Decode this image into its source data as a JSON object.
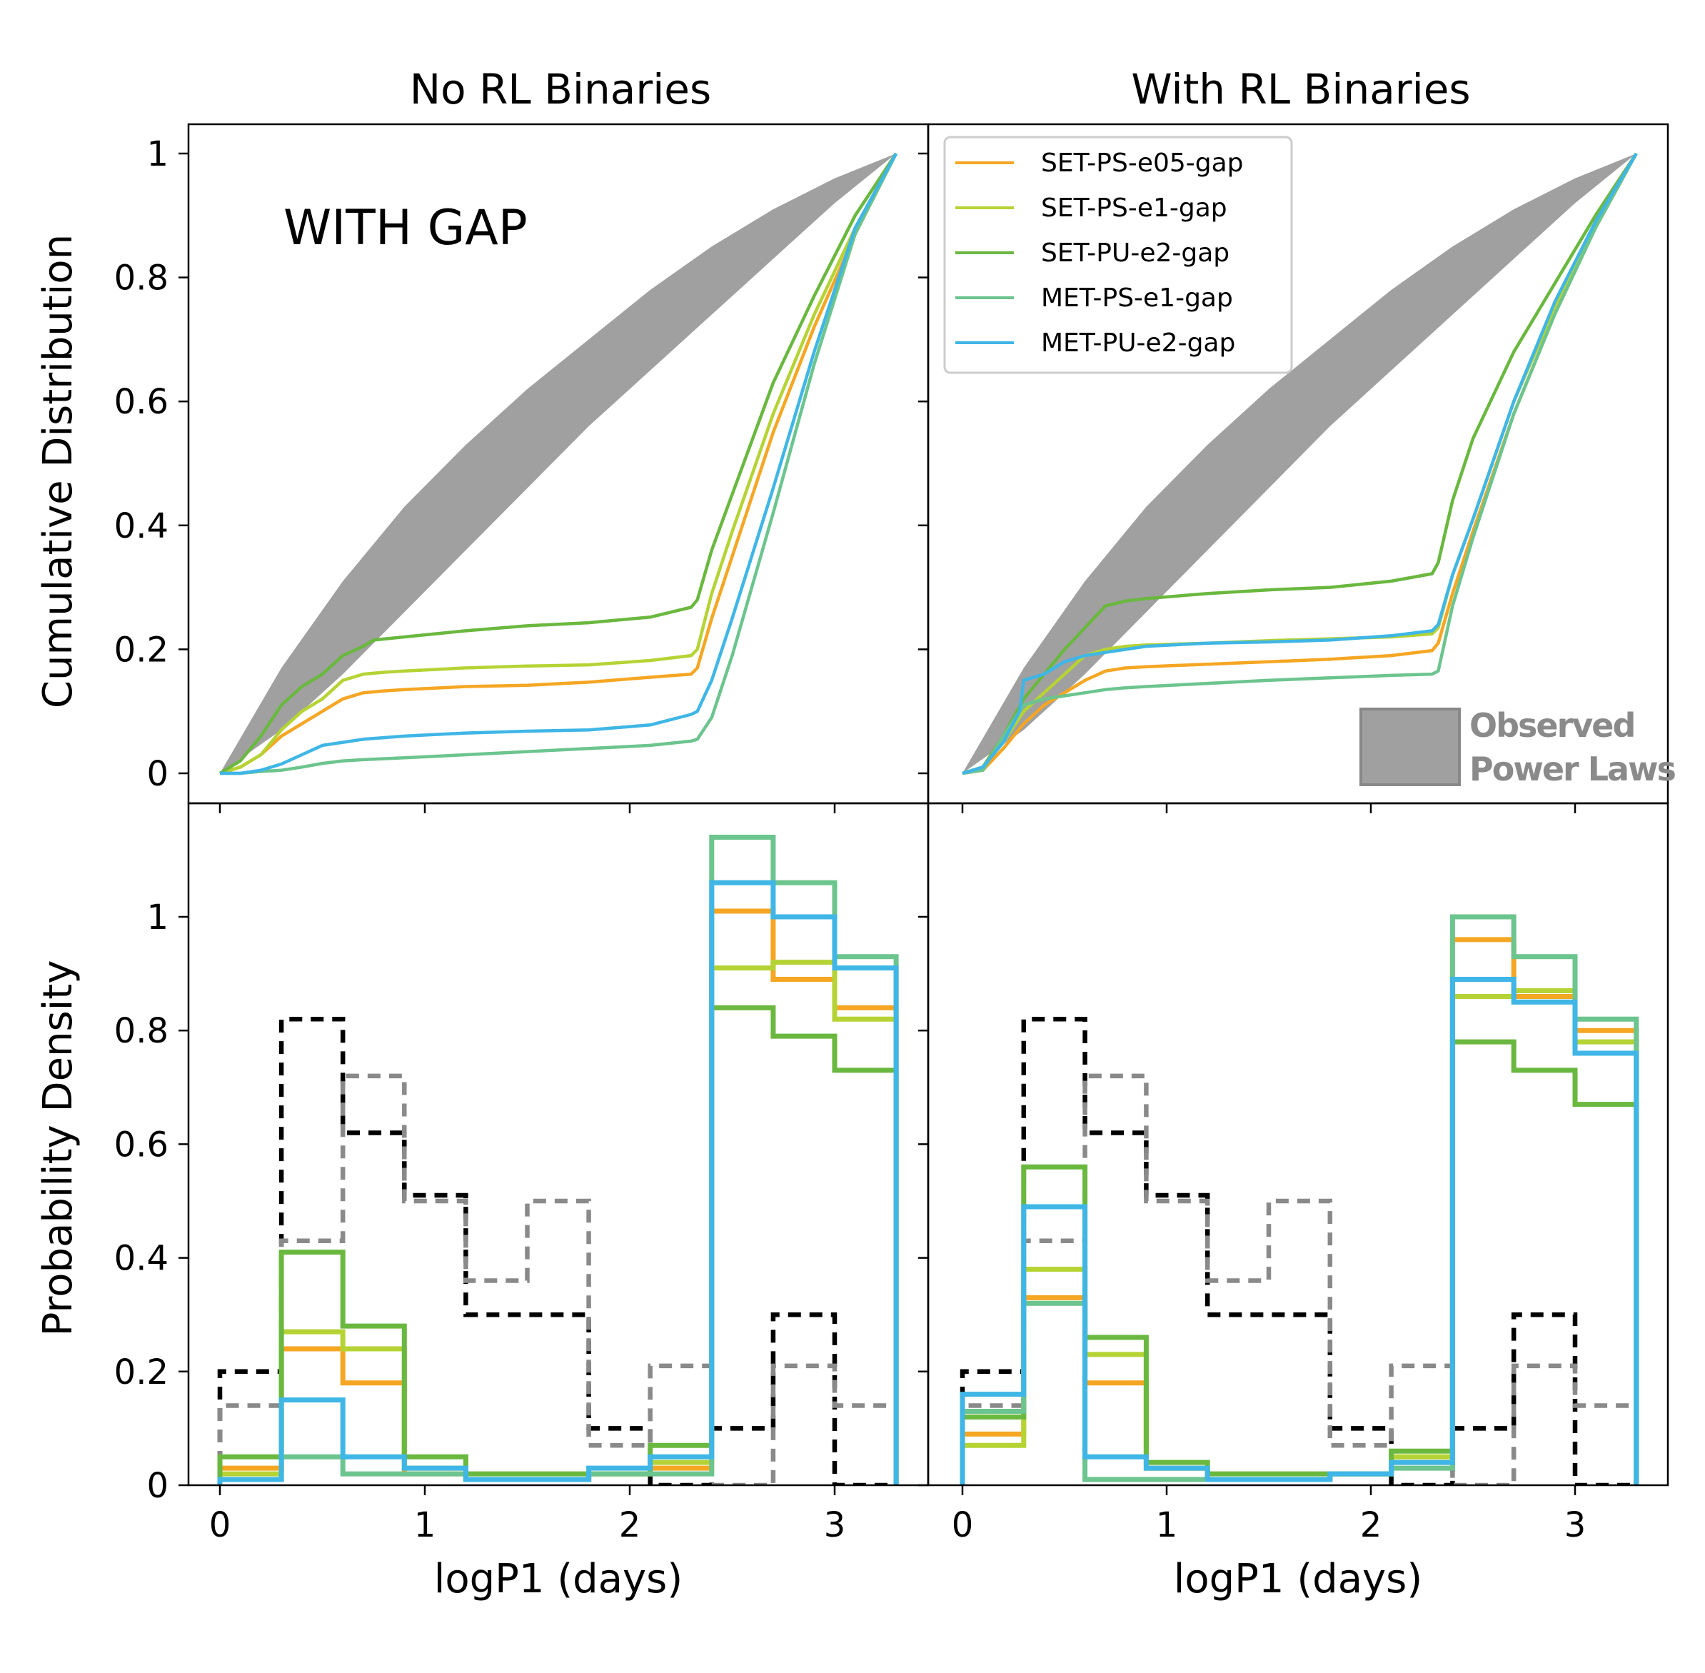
{
  "figure": {
    "col_titles": [
      "No RL Binaries",
      "With RL Binaries"
    ],
    "annotation": "WITH GAP",
    "band_legend": [
      "Observed",
      "Power Laws"
    ]
  },
  "colors": {
    "SET-PS-e05-gap": "#f5a623",
    "SET-PS-e1-gap": "#b5d334",
    "SET-PU-e2-gap": "#6ab83f",
    "MET-PS-e1-gap": "#6cc48e",
    "MET-PU-e2-gap": "#3fb6e6",
    "obs_black": "#000000",
    "obs_gray": "#8a8a8a",
    "band": "#a0a0a0"
  },
  "chart_data": [
    {
      "id": "cdf-no-rl",
      "type": "line",
      "title": "No RL Binaries",
      "ylabel": "Cumulative Distribution",
      "xlim": [
        -0.2,
        3.5
      ],
      "ylim": [
        -0.05,
        1.05
      ],
      "yticks": [
        0,
        0.2,
        0.4,
        0.6,
        0.8,
        1
      ],
      "ytick_labels": [
        "0",
        "0.2",
        "0.4",
        "0.6",
        "0.8",
        "1"
      ],
      "band": {
        "name": "Observed Power Laws",
        "x": [
          0,
          0.3,
          0.6,
          0.9,
          1.2,
          1.5,
          1.8,
          2.1,
          2.4,
          2.7,
          3.0,
          3.3
        ],
        "lower": [
          0,
          0.07,
          0.16,
          0.26,
          0.36,
          0.46,
          0.56,
          0.65,
          0.74,
          0.83,
          0.92,
          1.0
        ],
        "upper": [
          0,
          0.17,
          0.31,
          0.43,
          0.53,
          0.62,
          0.7,
          0.78,
          0.85,
          0.91,
          0.96,
          1.0
        ]
      },
      "series": [
        {
          "name": "SET-PS-e05-gap",
          "x": [
            0,
            0.1,
            0.2,
            0.3,
            0.4,
            0.5,
            0.6,
            0.7,
            0.8,
            0.9,
            1.2,
            1.5,
            1.8,
            2.1,
            2.3,
            2.33,
            2.4,
            2.5,
            2.7,
            2.9,
            3.1,
            3.3
          ],
          "y": [
            0,
            0.01,
            0.03,
            0.06,
            0.08,
            0.1,
            0.12,
            0.13,
            0.133,
            0.135,
            0.14,
            0.142,
            0.147,
            0.155,
            0.16,
            0.17,
            0.25,
            0.35,
            0.55,
            0.72,
            0.87,
            1.0
          ]
        },
        {
          "name": "SET-PS-e1-gap",
          "x": [
            0,
            0.1,
            0.2,
            0.3,
            0.4,
            0.5,
            0.6,
            0.7,
            0.8,
            0.9,
            1.2,
            1.5,
            1.8,
            2.1,
            2.3,
            2.33,
            2.4,
            2.5,
            2.7,
            2.9,
            3.1,
            3.3
          ],
          "y": [
            0,
            0.01,
            0.03,
            0.07,
            0.1,
            0.12,
            0.15,
            0.16,
            0.163,
            0.165,
            0.17,
            0.173,
            0.175,
            0.182,
            0.19,
            0.2,
            0.29,
            0.39,
            0.58,
            0.74,
            0.88,
            1.0
          ]
        },
        {
          "name": "SET-PU-e2-gap",
          "x": [
            0,
            0.1,
            0.2,
            0.3,
            0.4,
            0.5,
            0.6,
            0.7,
            0.75,
            0.9,
            1.2,
            1.5,
            1.8,
            2.1,
            2.3,
            2.33,
            2.4,
            2.5,
            2.7,
            2.9,
            3.1,
            3.3
          ],
          "y": [
            0,
            0.02,
            0.06,
            0.11,
            0.14,
            0.16,
            0.19,
            0.205,
            0.215,
            0.22,
            0.23,
            0.238,
            0.243,
            0.252,
            0.268,
            0.28,
            0.36,
            0.45,
            0.63,
            0.77,
            0.9,
            1.0
          ]
        },
        {
          "name": "MET-PS-e1-gap",
          "x": [
            0,
            0.1,
            0.2,
            0.3,
            0.4,
            0.5,
            0.6,
            0.7,
            0.9,
            1.2,
            1.5,
            1.8,
            2.1,
            2.3,
            2.33,
            2.4,
            2.5,
            2.7,
            2.9,
            3.1,
            3.3
          ],
          "y": [
            0,
            0.0,
            0.003,
            0.005,
            0.01,
            0.016,
            0.02,
            0.022,
            0.025,
            0.03,
            0.035,
            0.04,
            0.045,
            0.052,
            0.055,
            0.09,
            0.19,
            0.42,
            0.66,
            0.87,
            1.0
          ]
        },
        {
          "name": "MET-PU-e2-gap",
          "x": [
            0,
            0.1,
            0.2,
            0.3,
            0.4,
            0.5,
            0.6,
            0.7,
            0.9,
            1.2,
            1.5,
            1.8,
            2.1,
            2.3,
            2.33,
            2.4,
            2.5,
            2.7,
            2.9,
            3.1,
            3.3
          ],
          "y": [
            0,
            0.0,
            0.005,
            0.015,
            0.03,
            0.045,
            0.05,
            0.055,
            0.06,
            0.065,
            0.068,
            0.07,
            0.078,
            0.095,
            0.1,
            0.15,
            0.25,
            0.46,
            0.68,
            0.88,
            1.0
          ]
        }
      ]
    },
    {
      "id": "cdf-rl",
      "type": "line",
      "title": "With RL Binaries",
      "xlim": [
        -0.2,
        3.5
      ],
      "ylim": [
        -0.05,
        1.05
      ],
      "band": {
        "name": "Observed Power Laws",
        "x": [
          0,
          0.3,
          0.6,
          0.9,
          1.2,
          1.5,
          1.8,
          2.1,
          2.4,
          2.7,
          3.0,
          3.3
        ],
        "lower": [
          0,
          0.07,
          0.16,
          0.26,
          0.36,
          0.46,
          0.56,
          0.65,
          0.74,
          0.83,
          0.92,
          1.0
        ],
        "upper": [
          0,
          0.17,
          0.31,
          0.43,
          0.53,
          0.62,
          0.7,
          0.78,
          0.85,
          0.91,
          0.96,
          1.0
        ]
      },
      "legend": {
        "position": "top-left",
        "entries": [
          "SET-PS-e05-gap",
          "SET-PS-e1-gap",
          "SET-PU-e2-gap",
          "MET-PS-e1-gap",
          "MET-PU-e2-gap"
        ]
      },
      "series": [
        {
          "name": "SET-PS-e05-gap",
          "x": [
            0,
            0.1,
            0.2,
            0.3,
            0.4,
            0.5,
            0.6,
            0.7,
            0.8,
            0.9,
            1.2,
            1.5,
            1.8,
            2.1,
            2.3,
            2.33,
            2.4,
            2.5,
            2.7,
            2.9,
            3.1,
            3.3
          ],
          "y": [
            0,
            0.005,
            0.04,
            0.08,
            0.11,
            0.13,
            0.15,
            0.165,
            0.17,
            0.172,
            0.176,
            0.18,
            0.184,
            0.19,
            0.198,
            0.21,
            0.29,
            0.39,
            0.58,
            0.74,
            0.88,
            1.0
          ]
        },
        {
          "name": "SET-PS-e1-gap",
          "x": [
            0,
            0.1,
            0.2,
            0.3,
            0.4,
            0.5,
            0.6,
            0.7,
            0.8,
            0.9,
            1.2,
            1.5,
            1.8,
            2.1,
            2.3,
            2.33,
            2.4,
            2.5,
            2.7,
            2.9,
            3.1,
            3.3
          ],
          "y": [
            0,
            0.01,
            0.05,
            0.1,
            0.13,
            0.16,
            0.19,
            0.2,
            0.205,
            0.207,
            0.21,
            0.214,
            0.217,
            0.22,
            0.225,
            0.235,
            0.32,
            0.41,
            0.6,
            0.75,
            0.89,
            1.0
          ]
        },
        {
          "name": "SET-PU-e2-gap",
          "x": [
            0,
            0.1,
            0.2,
            0.3,
            0.4,
            0.5,
            0.6,
            0.7,
            0.8,
            0.9,
            1.2,
            1.5,
            1.8,
            2.1,
            2.3,
            2.33,
            2.4,
            2.5,
            2.7,
            2.9,
            3.1,
            3.3
          ],
          "y": [
            0,
            0.01,
            0.06,
            0.12,
            0.16,
            0.2,
            0.235,
            0.27,
            0.278,
            0.282,
            0.29,
            0.296,
            0.3,
            0.31,
            0.322,
            0.34,
            0.44,
            0.54,
            0.68,
            0.79,
            0.9,
            1.0
          ]
        },
        {
          "name": "MET-PS-e1-gap",
          "x": [
            0,
            0.1,
            0.2,
            0.3,
            0.4,
            0.5,
            0.6,
            0.7,
            0.8,
            0.9,
            1.2,
            1.5,
            1.8,
            2.1,
            2.3,
            2.33,
            2.4,
            2.5,
            2.7,
            2.9,
            3.1,
            3.3
          ],
          "y": [
            0,
            0.005,
            0.06,
            0.11,
            0.12,
            0.125,
            0.13,
            0.135,
            0.138,
            0.14,
            0.145,
            0.15,
            0.154,
            0.158,
            0.16,
            0.165,
            0.27,
            0.38,
            0.58,
            0.74,
            0.88,
            1.0
          ]
        },
        {
          "name": "MET-PU-e2-gap",
          "x": [
            0,
            0.1,
            0.2,
            0.28,
            0.3,
            0.4,
            0.5,
            0.6,
            0.7,
            0.8,
            0.9,
            1.2,
            1.5,
            1.8,
            2.1,
            2.3,
            2.33,
            2.4,
            2.5,
            2.7,
            2.9,
            3.1,
            3.3
          ],
          "y": [
            0,
            0.01,
            0.05,
            0.1,
            0.15,
            0.16,
            0.18,
            0.19,
            0.195,
            0.2,
            0.205,
            0.21,
            0.212,
            0.215,
            0.222,
            0.23,
            0.24,
            0.32,
            0.41,
            0.6,
            0.76,
            0.89,
            1.0
          ]
        }
      ]
    },
    {
      "id": "pdf-no-rl",
      "type": "step",
      "xlabel": "logP1 (days)",
      "ylabel": "Probability Density",
      "xlim": [
        -0.2,
        3.5
      ],
      "ylim": [
        0,
        1.2
      ],
      "xticks": [
        0,
        1,
        2,
        3
      ],
      "yticks": [
        0,
        0.2,
        0.4,
        0.6,
        0.8,
        1
      ],
      "ytick_labels": [
        "0",
        "0.2",
        "0.4",
        "0.6",
        "0.8",
        "1"
      ],
      "bin_edges": [
        0,
        0.3,
        0.6,
        0.9,
        1.2,
        1.5,
        1.8,
        2.1,
        2.4,
        2.7,
        3.0,
        3.3
      ],
      "series": [
        {
          "name": "Observed (black)",
          "style": "dashed",
          "values": [
            0.2,
            0.82,
            0.62,
            0.51,
            0.3,
            0.3,
            0.1,
            0.0,
            0.1,
            0.3,
            0.0
          ]
        },
        {
          "name": "Observed (gray)",
          "style": "dashed",
          "values": [
            0.14,
            0.43,
            0.72,
            0.5,
            0.36,
            0.5,
            0.07,
            0.21,
            0.0,
            0.21,
            0.14
          ]
        },
        {
          "name": "SET-PS-e05-gap",
          "values": [
            0.03,
            0.24,
            0.18,
            0.02,
            0.01,
            0.01,
            0.02,
            0.03,
            1.01,
            0.89,
            0.84
          ]
        },
        {
          "name": "SET-PS-e1-gap",
          "values": [
            0.02,
            0.27,
            0.24,
            0.03,
            0.01,
            0.01,
            0.02,
            0.04,
            0.91,
            0.92,
            0.82
          ]
        },
        {
          "name": "SET-PU-e2-gap",
          "values": [
            0.05,
            0.41,
            0.28,
            0.05,
            0.02,
            0.02,
            0.02,
            0.07,
            0.84,
            0.79,
            0.73
          ]
        },
        {
          "name": "MET-PS-e1-gap",
          "values": [
            0.01,
            0.05,
            0.02,
            0.02,
            0.01,
            0.01,
            0.02,
            0.02,
            1.14,
            1.06,
            0.93
          ]
        },
        {
          "name": "MET-PU-e2-gap",
          "values": [
            0.01,
            0.15,
            0.05,
            0.03,
            0.01,
            0.01,
            0.03,
            0.05,
            1.06,
            1.0,
            0.91
          ]
        }
      ]
    },
    {
      "id": "pdf-rl",
      "type": "step",
      "xlabel": "logP1 (days)",
      "xlim": [
        -0.2,
        3.5
      ],
      "ylim": [
        0,
        1.2
      ],
      "xticks": [
        0,
        1,
        2,
        3
      ],
      "bin_edges": [
        0,
        0.3,
        0.6,
        0.9,
        1.2,
        1.5,
        1.8,
        2.1,
        2.4,
        2.7,
        3.0,
        3.3
      ],
      "series": [
        {
          "name": "Observed (black)",
          "style": "dashed",
          "values": [
            0.2,
            0.82,
            0.62,
            0.51,
            0.3,
            0.3,
            0.1,
            0.0,
            0.1,
            0.3,
            0.0
          ]
        },
        {
          "name": "Observed (gray)",
          "style": "dashed",
          "values": [
            0.14,
            0.43,
            0.72,
            0.5,
            0.36,
            0.5,
            0.07,
            0.21,
            0.0,
            0.21,
            0.14
          ]
        },
        {
          "name": "SET-PS-e05-gap",
          "values": [
            0.09,
            0.33,
            0.18,
            0.03,
            0.01,
            0.01,
            0.02,
            0.04,
            0.96,
            0.86,
            0.8
          ]
        },
        {
          "name": "SET-PS-e1-gap",
          "values": [
            0.07,
            0.38,
            0.23,
            0.03,
            0.01,
            0.01,
            0.02,
            0.05,
            0.86,
            0.87,
            0.78
          ]
        },
        {
          "name": "SET-PU-e2-gap",
          "values": [
            0.12,
            0.56,
            0.26,
            0.04,
            0.02,
            0.02,
            0.02,
            0.06,
            0.78,
            0.73,
            0.67
          ]
        },
        {
          "name": "MET-PS-e1-gap",
          "values": [
            0.13,
            0.32,
            0.01,
            0.01,
            0.01,
            0.01,
            0.02,
            0.03,
            1.0,
            0.93,
            0.82
          ]
        },
        {
          "name": "MET-PU-e2-gap",
          "values": [
            0.16,
            0.49,
            0.05,
            0.03,
            0.01,
            0.01,
            0.02,
            0.04,
            0.89,
            0.85,
            0.76
          ]
        }
      ]
    }
  ]
}
